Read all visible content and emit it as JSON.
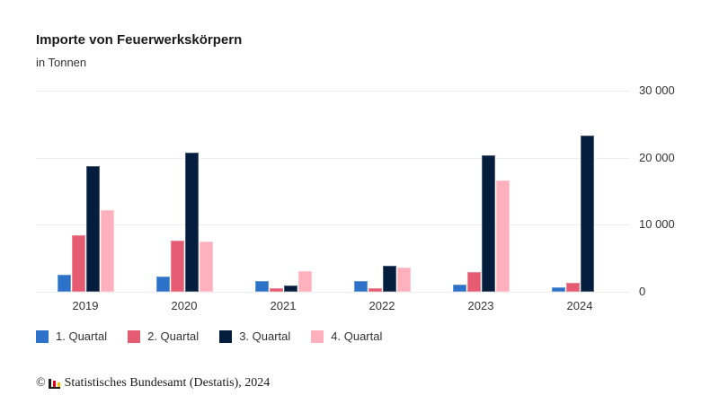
{
  "header": {
    "title": "Importe von Feuerwerkskörpern",
    "subtitle": "in Tonnen"
  },
  "chart_data": {
    "type": "bar",
    "title": "Importe von Feuerwerkskörpern",
    "subtitle": "in Tonnen",
    "unit": "Tonnen",
    "categories": [
      "2019",
      "2020",
      "2021",
      "2022",
      "2023",
      "2024"
    ],
    "series": [
      {
        "name": "1. Quartal",
        "color": "#2b72c8",
        "values": [
          2500,
          2300,
          1600,
          1600,
          1100,
          700
        ]
      },
      {
        "name": "2. Quartal",
        "color": "#e55b71",
        "values": [
          8400,
          7700,
          500,
          600,
          2900,
          1400
        ]
      },
      {
        "name": "3. Quartal",
        "color": "#061e3e",
        "values": [
          18700,
          20700,
          900,
          3900,
          20400,
          23300
        ]
      },
      {
        "name": "4. Quartal",
        "color": "#ffb0bc",
        "values": [
          12200,
          7500,
          3100,
          3600,
          16600,
          null
        ]
      }
    ],
    "xlabel": "",
    "ylabel": "",
    "ylim": [
      0,
      30000
    ],
    "yticks": [
      0,
      10000,
      20000,
      30000
    ],
    "ytick_labels": [
      "0",
      "10 000",
      "20 000",
      "30 000"
    ],
    "grid": true,
    "legend_position": "bottom",
    "yaxis_side": "right"
  },
  "footer": {
    "copyright_symbol": "©",
    "source": "Statistisches Bundesamt (Destatis), 2024"
  }
}
